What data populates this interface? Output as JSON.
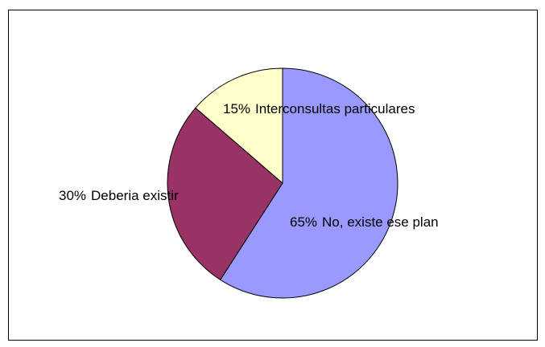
{
  "chart_data": {
    "type": "pie",
    "categories": [
      "No, existe ese plan",
      "Deberia existir",
      "Interconsultas particulares"
    ],
    "values": [
      65,
      30,
      15
    ],
    "value_labels": [
      "65%",
      "30%",
      "15%"
    ],
    "colors": [
      "#9999ff",
      "#993366",
      "#ffffcc"
    ]
  }
}
